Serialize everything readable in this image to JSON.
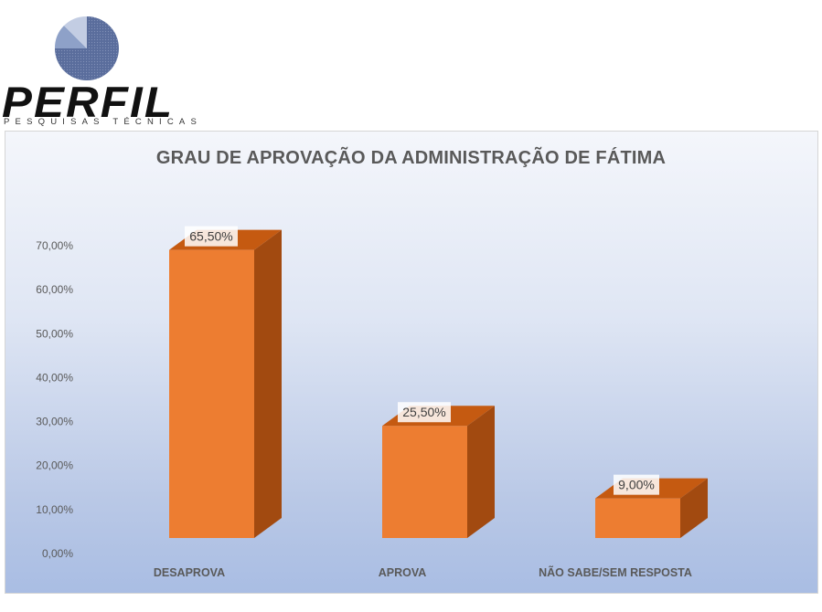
{
  "logo": {
    "wordmark": "PERFIL",
    "tagline": "PESQUISAS TÉCNICAS"
  },
  "chart_data": {
    "type": "bar",
    "title": "GRAU DE APROVAÇÃO DA ADMINISTRAÇÃO DE FÁTIMA",
    "categories": [
      "DESAPROVA",
      "APROVA",
      "NÃO SABE/SEM RESPOSTA"
    ],
    "values": [
      65.5,
      25.5,
      9.0
    ],
    "data_labels": [
      "65,50%",
      "25,50%",
      "9,00%"
    ],
    "ylim": [
      0,
      70
    ],
    "yticks": [
      0,
      10,
      20,
      30,
      40,
      50,
      60,
      70
    ],
    "ytick_labels": [
      "0,00%",
      "10,00%",
      "20,00%",
      "30,00%",
      "40,00%",
      "50,00%",
      "60,00%",
      "70,00%"
    ],
    "bar_style": "3d",
    "colors": {
      "front": "#ed7d31",
      "top": "#c55a11",
      "side": "#a24a10"
    },
    "grid": false
  }
}
